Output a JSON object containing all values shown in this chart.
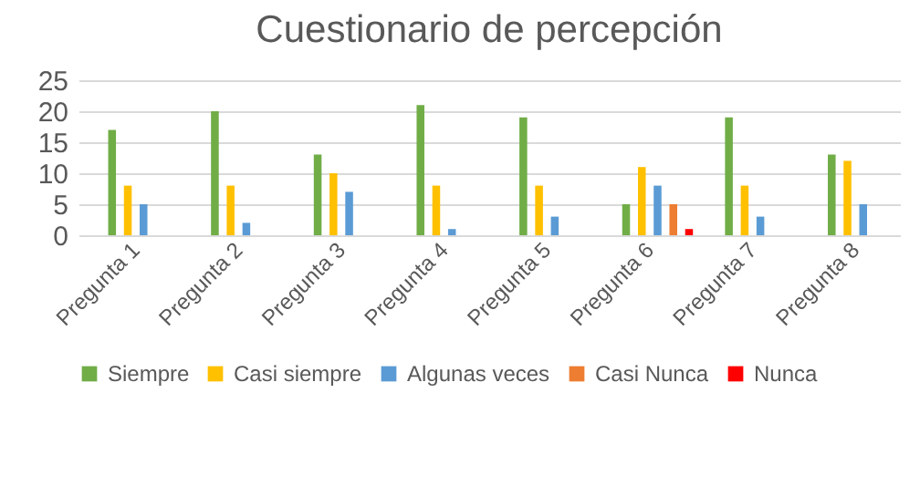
{
  "chart_data": {
    "type": "bar",
    "title": "Cuestionario de percepción",
    "categories": [
      "Pregunta 1",
      "Pregunta 2",
      "Pregunta 3",
      "Pregunta 4",
      "Pregunta 5",
      "Pregunta 6",
      "Pregunta 7",
      "Pregunta 8"
    ],
    "series": [
      {
        "name": "Siempre",
        "color": "#70ad47",
        "values": [
          17,
          20,
          13,
          21,
          19,
          5,
          19,
          13
        ]
      },
      {
        "name": "Casi siempre",
        "color": "#ffc000",
        "values": [
          8,
          8,
          10,
          8,
          8,
          11,
          8,
          12
        ]
      },
      {
        "name": "Algunas veces",
        "color": "#5b9bd5",
        "values": [
          5,
          2,
          7,
          1,
          3,
          8,
          3,
          5
        ]
      },
      {
        "name": "Casi Nunca",
        "color": "#ed7d31",
        "values": [
          0,
          0,
          0,
          0,
          0,
          5,
          0,
          0
        ]
      },
      {
        "name": "Nunca",
        "color": "#ff0000",
        "values": [
          0,
          0,
          0,
          0,
          0,
          1,
          0,
          0
        ]
      }
    ],
    "ylim": [
      0,
      25
    ],
    "yticks": [
      0,
      5,
      10,
      15,
      20,
      25
    ],
    "grid": "y",
    "legend": "bottom"
  }
}
